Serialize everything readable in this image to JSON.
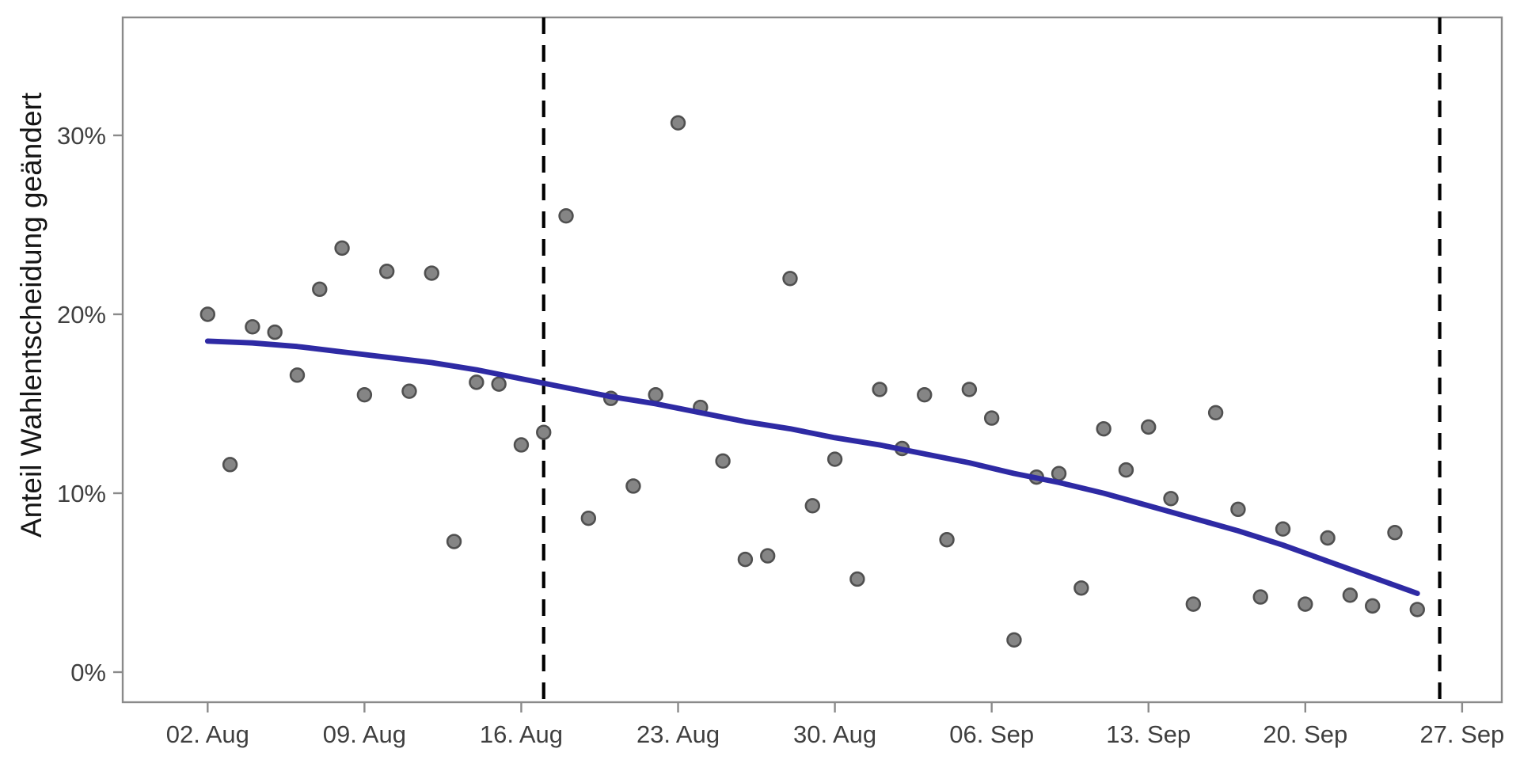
{
  "chart_data": {
    "type": "scatter",
    "title": "",
    "xlabel": "",
    "ylabel": "Anteil Wahlentscheidung geändert",
    "grid": false,
    "legend": "none",
    "y_ticks": [
      0,
      10,
      20,
      30
    ],
    "y_tick_labels": [
      "0%",
      "10%",
      "20%",
      "30%"
    ],
    "ylim": [
      -1.7,
      36.6
    ],
    "x_tick_days": [
      0,
      7,
      14,
      21,
      28,
      35,
      42,
      49,
      56
    ],
    "x_tick_labels": [
      "02. Aug",
      "09. Aug",
      "16. Aug",
      "23. Aug",
      "30. Aug",
      "06. Sep",
      "13. Sep",
      "20. Sep",
      "27. Sep"
    ],
    "xlim_days": [
      -3.8,
      57.8
    ],
    "dates": [
      "02. Aug",
      "03. Aug",
      "04. Aug",
      "05. Aug",
      "06. Aug",
      "07. Aug",
      "08. Aug",
      "09. Aug",
      "10. Aug",
      "11. Aug",
      "12. Aug",
      "13. Aug",
      "14. Aug",
      "15. Aug",
      "16. Aug",
      "17. Aug",
      "18. Aug",
      "19. Aug",
      "20. Aug",
      "21. Aug",
      "22. Aug",
      "23. Aug",
      "24. Aug",
      "25. Aug",
      "26. Aug",
      "27. Aug",
      "28. Aug",
      "29. Aug",
      "30. Aug",
      "31. Aug",
      "01. Sep",
      "02. Sep",
      "03. Sep",
      "04. Sep",
      "05. Sep",
      "06. Sep",
      "07. Sep",
      "08. Sep",
      "09. Sep",
      "10. Sep",
      "11. Sep",
      "12. Sep",
      "13. Sep",
      "14. Sep",
      "15. Sep",
      "16. Sep",
      "17. Sep",
      "18. Sep",
      "19. Sep",
      "20. Sep",
      "21. Sep",
      "22. Sep",
      "23. Sep",
      "24. Sep",
      "25. Sep"
    ],
    "values": [
      20.0,
      11.6,
      19.3,
      19.0,
      16.6,
      21.4,
      23.7,
      15.5,
      22.4,
      15.7,
      22.3,
      7.3,
      16.2,
      16.1,
      12.7,
      13.4,
      25.5,
      8.6,
      15.3,
      10.4,
      15.5,
      30.7,
      14.8,
      11.8,
      6.3,
      6.5,
      22.0,
      9.3,
      11.9,
      5.2,
      15.8,
      12.5,
      15.5,
      7.4,
      15.8,
      14.2,
      1.8,
      10.9,
      11.1,
      4.7,
      13.6,
      11.3,
      13.7,
      9.7,
      3.8,
      14.5,
      9.1,
      4.2,
      8.0,
      3.8,
      7.5,
      4.3,
      3.7,
      7.8,
      3.5
    ],
    "trend_line": {
      "type": "smooth",
      "points_day_value": [
        [
          0,
          18.5
        ],
        [
          2,
          18.4
        ],
        [
          4,
          18.2
        ],
        [
          6,
          17.9
        ],
        [
          8,
          17.6
        ],
        [
          10,
          17.3
        ],
        [
          12,
          16.9
        ],
        [
          14,
          16.4
        ],
        [
          16,
          15.9
        ],
        [
          18,
          15.4
        ],
        [
          20,
          15.0
        ],
        [
          22,
          14.5
        ],
        [
          24,
          14.0
        ],
        [
          26,
          13.6
        ],
        [
          28,
          13.1
        ],
        [
          30,
          12.7
        ],
        [
          32,
          12.2
        ],
        [
          34,
          11.7
        ],
        [
          36,
          11.1
        ],
        [
          38,
          10.6
        ],
        [
          40,
          10.0
        ],
        [
          42,
          9.3
        ],
        [
          44,
          8.6
        ],
        [
          46,
          7.9
        ],
        [
          48,
          7.1
        ],
        [
          50,
          6.2
        ],
        [
          52,
          5.3
        ],
        [
          54,
          4.4
        ]
      ]
    },
    "vlines": [
      {
        "date": "17. Aug",
        "day": 15
      },
      {
        "date": "26. Sep",
        "day": 55
      }
    ]
  },
  "colors": {
    "background": "#ffffff",
    "point_fill": "#858585",
    "point_stroke": "#505050",
    "trend": "#2e2aa4",
    "vline": "#000000",
    "axis": "#8a8a8a",
    "tick_label": "#3f3f3f",
    "axis_title": "#161616"
  }
}
